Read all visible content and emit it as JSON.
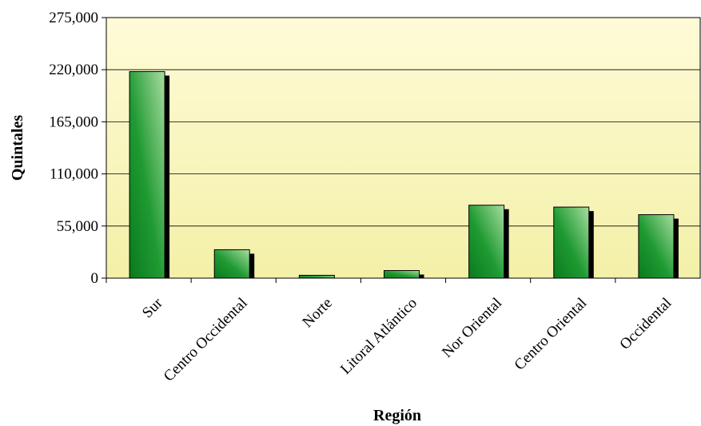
{
  "chart_data": {
    "type": "bar",
    "title": "",
    "xlabel": "Región",
    "ylabel": "Quintales",
    "ylim": [
      0,
      275000
    ],
    "yticks": [
      0,
      55000,
      110000,
      165000,
      220000,
      275000
    ],
    "ytick_labels": [
      "0",
      "55,000",
      "110,000",
      "165,000",
      "220,000",
      "275,000"
    ],
    "categories": [
      "Sur",
      "Centro Occidental",
      "Norte",
      "Litoral Atlántico",
      "Nor Oriental",
      "Centro Oriental",
      "Occidental"
    ],
    "values": [
      218000,
      30000,
      3000,
      8000,
      77000,
      75000,
      67000
    ],
    "grid": true,
    "legend": "none",
    "colors": {
      "bar_dark": "#0a7a1e",
      "bar_light": "#a8dca0",
      "plot_top": "#fffbd8",
      "plot_bottom": "#f3f0a8",
      "shadow": "#000000"
    }
  }
}
